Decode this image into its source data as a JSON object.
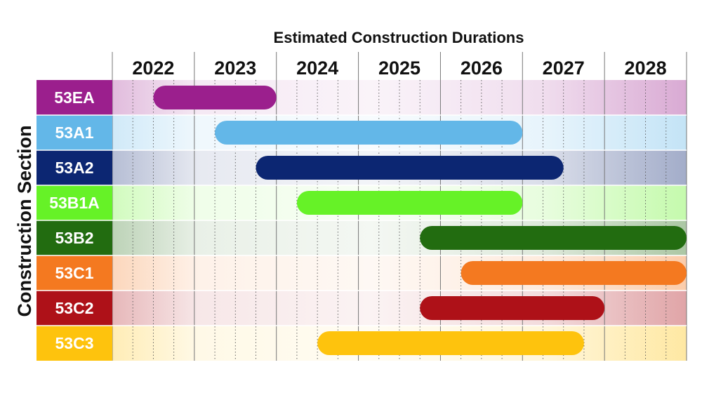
{
  "chart_data": {
    "type": "gantt",
    "title": "Estimated Construction Durations",
    "ylabel": "Construction Section",
    "xlabel": "",
    "x_ticks": [
      "2022",
      "2023",
      "2024",
      "2025",
      "2026",
      "2027",
      "2028"
    ],
    "xlim": [
      2021.5,
      2028.5
    ],
    "grid": true,
    "tasks": [
      {
        "name": "53EA",
        "color": "#9B1F8D",
        "start": 2022.0,
        "end": 2023.5
      },
      {
        "name": "53A1",
        "color": "#63B7E8",
        "start": 2022.75,
        "end": 2026.5
      },
      {
        "name": "53A2",
        "color": "#0C2672",
        "start": 2023.25,
        "end": 2027.0
      },
      {
        "name": "53B1A",
        "color": "#66F227",
        "start": 2023.75,
        "end": 2026.5
      },
      {
        "name": "53B2",
        "color": "#226C10",
        "start": 2025.25,
        "end": 2028.5
      },
      {
        "name": "53C1",
        "color": "#F47920",
        "start": 2025.75,
        "end": 2028.5
      },
      {
        "name": "53C2",
        "color": "#AE1118",
        "start": 2025.25,
        "end": 2027.5
      },
      {
        "name": "53C3",
        "color": "#FEC30D",
        "start": 2024.0,
        "end": 2027.25
      }
    ]
  }
}
